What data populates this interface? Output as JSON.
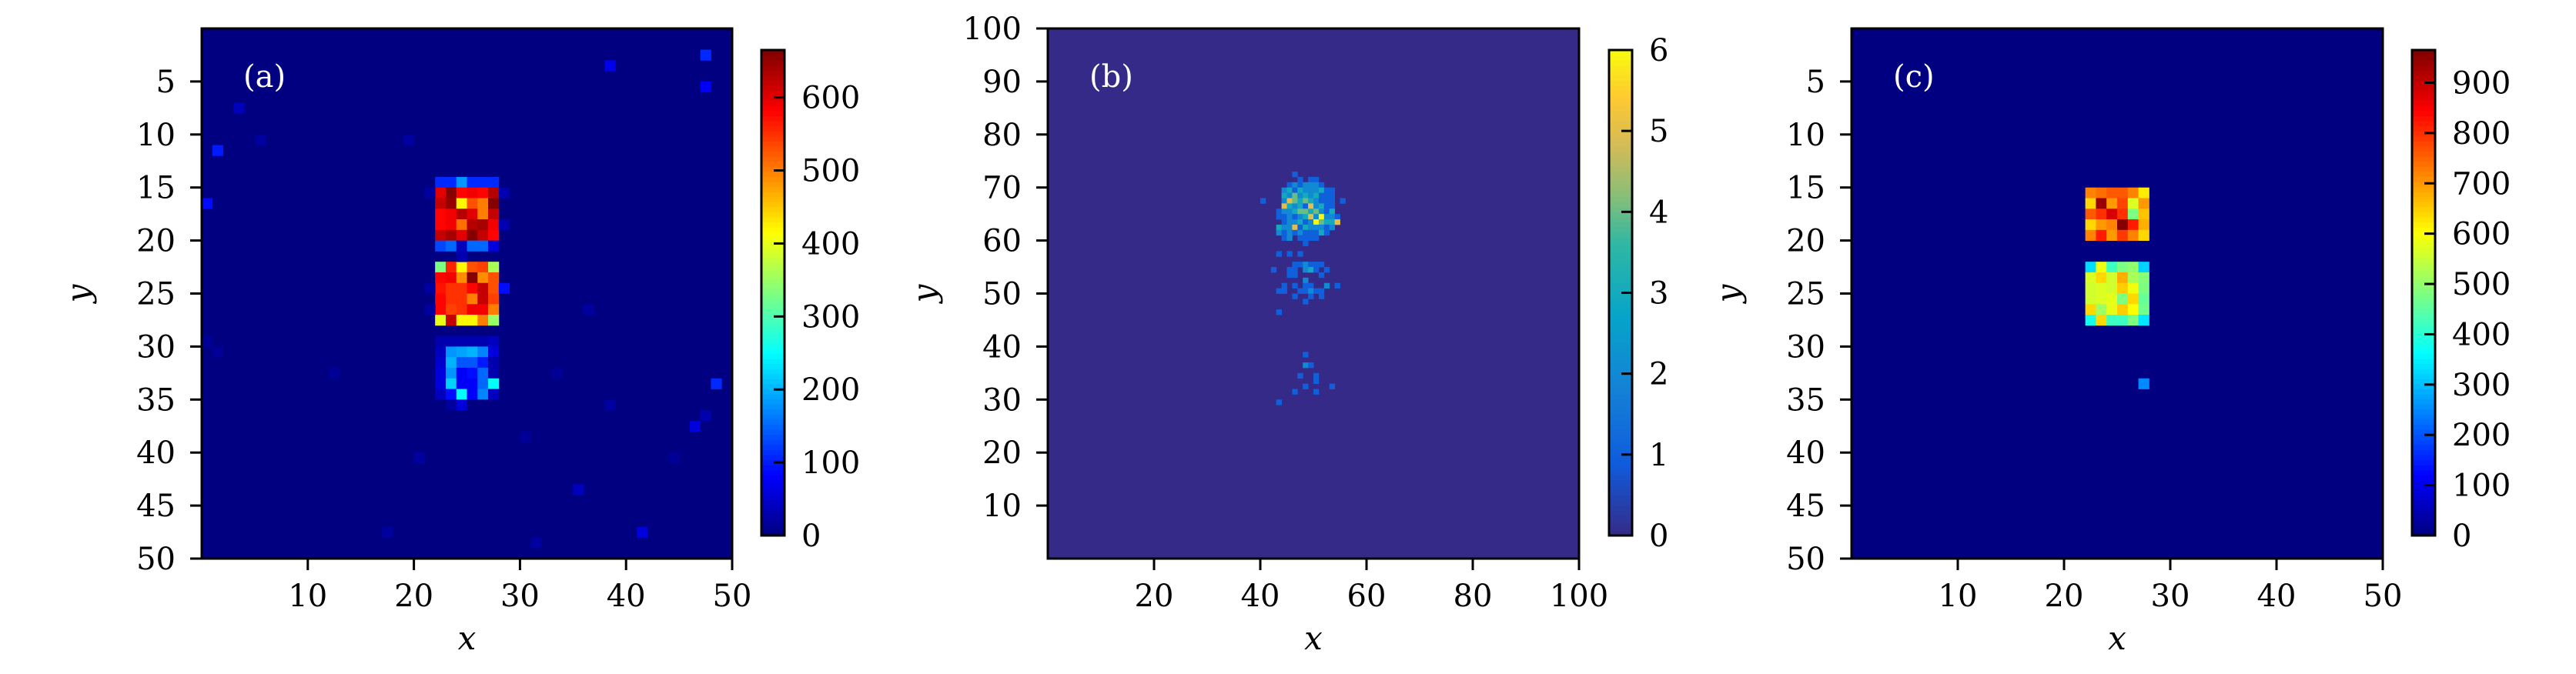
{
  "chart_data": [
    {
      "type": "heatmap",
      "panel_label": "(a)",
      "colormap": "jet",
      "xlabel": "x",
      "ylabel": "y",
      "xlim": [
        0,
        50
      ],
      "ylim": [
        50,
        0
      ],
      "y_axis_direction": "top-to-bottom",
      "xticks": [
        "10",
        "20",
        "30",
        "40",
        "50"
      ],
      "yticks": [
        "5",
        "10",
        "15",
        "20",
        "25",
        "30",
        "35",
        "40",
        "45",
        "50"
      ],
      "colorbar": {
        "min": 0,
        "max": 665,
        "ticks": [
          "0",
          "100",
          "200",
          "300",
          "400",
          "500",
          "600"
        ]
      },
      "background_value": 0,
      "blocks": [
        {
          "x0": 23,
          "y0": 15,
          "rows": [
            [
              110,
              110,
              180,
              110,
              110,
              110
            ],
            [
              600,
              660,
              580,
              590,
              580,
              630
            ],
            [
              620,
              650,
              420,
              530,
              500,
              660
            ],
            [
              580,
              590,
              630,
              600,
              500,
              620
            ],
            [
              580,
              590,
              510,
              630,
              640,
              590
            ],
            [
              620,
              640,
              600,
              660,
              620,
              580
            ],
            [
              130,
              150,
              40,
              150,
              150,
              60
            ]
          ]
        },
        {
          "x0": 23,
          "y0": 23,
          "rows": [
            [
              330,
              560,
              420,
              530,
              540,
              360
            ],
            [
              580,
              590,
              490,
              660,
              490,
              530
            ],
            [
              570,
              550,
              550,
              580,
              620,
              530
            ],
            [
              580,
              550,
              550,
              500,
              620,
              540
            ],
            [
              580,
              540,
              550,
              590,
              590,
              500
            ],
            [
              400,
              620,
              420,
              420,
              500,
              350
            ]
          ]
        },
        {
          "x0": 23,
          "y0": 30,
          "rows": [
            [
              30,
              30,
              30,
              30,
              30,
              40
            ],
            [
              40,
              180,
              190,
              200,
              170,
              60
            ],
            [
              50,
              200,
              140,
              140,
              100,
              30
            ],
            [
              60,
              180,
              80,
              90,
              150,
              30
            ],
            [
              60,
              220,
              80,
              80,
              150,
              250
            ],
            [
              40,
              90,
              250,
              80,
              170,
              40
            ],
            [
              0,
              20,
              60,
              0,
              0,
              0
            ]
          ]
        }
      ],
      "points": [
        [
          48,
          3,
          110
        ],
        [
          39,
          4,
          70
        ],
        [
          48,
          6,
          80
        ],
        [
          4,
          8,
          40
        ],
        [
          6,
          11,
          20
        ],
        [
          2,
          12,
          100
        ],
        [
          20,
          11,
          20
        ],
        [
          1,
          17,
          90
        ],
        [
          22,
          16,
          20
        ],
        [
          29,
          16,
          30
        ],
        [
          29,
          19,
          30
        ],
        [
          25,
          22,
          30
        ],
        [
          22,
          25,
          20
        ],
        [
          29,
          25,
          90
        ],
        [
          22,
          27,
          20
        ],
        [
          37,
          27,
          20
        ],
        [
          1,
          30,
          15
        ],
        [
          2,
          31,
          15
        ],
        [
          13,
          33,
          15
        ],
        [
          34,
          33,
          15
        ],
        [
          49,
          34,
          110
        ],
        [
          39,
          36,
          20
        ],
        [
          48,
          37,
          30
        ],
        [
          47,
          38,
          60
        ],
        [
          31,
          39,
          15
        ],
        [
          21,
          41,
          20
        ],
        [
          45,
          41,
          15
        ],
        [
          36,
          44,
          40
        ],
        [
          18,
          48,
          20
        ],
        [
          42,
          48,
          60
        ],
        [
          32,
          49,
          20
        ]
      ]
    },
    {
      "type": "heatmap",
      "panel_label": "(b)",
      "colormap": "parula",
      "xlabel": "x",
      "ylabel": "y",
      "xlim": [
        0,
        100
      ],
      "ylim": [
        0,
        100
      ],
      "y_axis_direction": "bottom-to-top",
      "xticks": [
        "20",
        "40",
        "60",
        "80",
        "100"
      ],
      "yticks": [
        "10",
        "20",
        "30",
        "40",
        "50",
        "60",
        "70",
        "80",
        "90",
        "100"
      ],
      "colorbar": {
        "min": 0,
        "max": 6,
        "ticks": [
          "0",
          "1",
          "2",
          "3",
          "4",
          "5",
          "6"
        ]
      },
      "background_value": 0,
      "points": [
        [
          47,
          73,
          1
        ],
        [
          48,
          72,
          1
        ],
        [
          50,
          72,
          1
        ],
        [
          51,
          72,
          1
        ],
        [
          46,
          71,
          1
        ],
        [
          47,
          71,
          2
        ],
        [
          48,
          71,
          1
        ],
        [
          49,
          71,
          2
        ],
        [
          50,
          71,
          2
        ],
        [
          51,
          71,
          2
        ],
        [
          52,
          71,
          1
        ],
        [
          45,
          70,
          2
        ],
        [
          46,
          70,
          3
        ],
        [
          47,
          70,
          1
        ],
        [
          48,
          70,
          3
        ],
        [
          49,
          70,
          2
        ],
        [
          50,
          70,
          2
        ],
        [
          51,
          70,
          2
        ],
        [
          52,
          70,
          3
        ],
        [
          53,
          70,
          1
        ],
        [
          54,
          70,
          1
        ],
        [
          45,
          69,
          3
        ],
        [
          46,
          69,
          2
        ],
        [
          47,
          69,
          4
        ],
        [
          48,
          69,
          2
        ],
        [
          49,
          69,
          3
        ],
        [
          50,
          69,
          2
        ],
        [
          51,
          69,
          3
        ],
        [
          52,
          69,
          1
        ],
        [
          53,
          69,
          1
        ],
        [
          54,
          69,
          1
        ],
        [
          41,
          68,
          1
        ],
        [
          45,
          68,
          2
        ],
        [
          46,
          68,
          5
        ],
        [
          47,
          68,
          4
        ],
        [
          48,
          68,
          3
        ],
        [
          49,
          68,
          4
        ],
        [
          50,
          68,
          3
        ],
        [
          51,
          68,
          2
        ],
        [
          52,
          68,
          1
        ],
        [
          53,
          68,
          1
        ],
        [
          54,
          68,
          1
        ],
        [
          56,
          68,
          1
        ],
        [
          45,
          67,
          5
        ],
        [
          46,
          67,
          3
        ],
        [
          47,
          67,
          2
        ],
        [
          48,
          67,
          3
        ],
        [
          49,
          67,
          1
        ],
        [
          50,
          67,
          5
        ],
        [
          51,
          67,
          2
        ],
        [
          52,
          67,
          3
        ],
        [
          53,
          67,
          1
        ],
        [
          54,
          67,
          1
        ],
        [
          44,
          66,
          1
        ],
        [
          45,
          66,
          2
        ],
        [
          46,
          66,
          2
        ],
        [
          47,
          66,
          3
        ],
        [
          48,
          66,
          4
        ],
        [
          49,
          66,
          4
        ],
        [
          50,
          66,
          3
        ],
        [
          51,
          66,
          4
        ],
        [
          52,
          66,
          2
        ],
        [
          53,
          66,
          1
        ],
        [
          54,
          66,
          3
        ],
        [
          44,
          65,
          1
        ],
        [
          45,
          65,
          1
        ],
        [
          46,
          65,
          2
        ],
        [
          47,
          65,
          1
        ],
        [
          48,
          65,
          2
        ],
        [
          49,
          65,
          3
        ],
        [
          50,
          65,
          5
        ],
        [
          51,
          65,
          2
        ],
        [
          52,
          65,
          6
        ],
        [
          53,
          65,
          2
        ],
        [
          54,
          65,
          2
        ],
        [
          55,
          65,
          1
        ],
        [
          45,
          64,
          1
        ],
        [
          46,
          64,
          2
        ],
        [
          47,
          64,
          2
        ],
        [
          48,
          64,
          3
        ],
        [
          49,
          64,
          1
        ],
        [
          50,
          64,
          2
        ],
        [
          51,
          64,
          6
        ],
        [
          52,
          64,
          4
        ],
        [
          53,
          64,
          3
        ],
        [
          54,
          64,
          3
        ],
        [
          55,
          64,
          5
        ],
        [
          44,
          63,
          3
        ],
        [
          45,
          63,
          2
        ],
        [
          46,
          63,
          2
        ],
        [
          47,
          63,
          5
        ],
        [
          48,
          63,
          1
        ],
        [
          49,
          63,
          3
        ],
        [
          50,
          63,
          2
        ],
        [
          51,
          63,
          2
        ],
        [
          52,
          63,
          2
        ],
        [
          53,
          63,
          1
        ],
        [
          54,
          63,
          2
        ],
        [
          44,
          62,
          2
        ],
        [
          45,
          62,
          1
        ],
        [
          46,
          62,
          2
        ],
        [
          47,
          62,
          1
        ],
        [
          48,
          62,
          2
        ],
        [
          49,
          62,
          1
        ],
        [
          50,
          62,
          1
        ],
        [
          51,
          62,
          1
        ],
        [
          52,
          62,
          3
        ],
        [
          53,
          62,
          1
        ],
        [
          45,
          61,
          1
        ],
        [
          46,
          61,
          2
        ],
        [
          48,
          61,
          1
        ],
        [
          49,
          61,
          1
        ],
        [
          50,
          61,
          1
        ],
        [
          51,
          61,
          1
        ],
        [
          49,
          60,
          1
        ],
        [
          44,
          58,
          1
        ],
        [
          46,
          58,
          1
        ],
        [
          48,
          58,
          1
        ],
        [
          47,
          56,
          1
        ],
        [
          48,
          56,
          1
        ],
        [
          49,
          56,
          2
        ],
        [
          50,
          56,
          1
        ],
        [
          51,
          56,
          1
        ],
        [
          52,
          56,
          1
        ],
        [
          43,
          55,
          1
        ],
        [
          46,
          55,
          1
        ],
        [
          47,
          55,
          1
        ],
        [
          49,
          55,
          2
        ],
        [
          50,
          55,
          3
        ],
        [
          51,
          55,
          1
        ],
        [
          53,
          55,
          1
        ],
        [
          46,
          54,
          1
        ],
        [
          47,
          54,
          1
        ],
        [
          52,
          54,
          1
        ],
        [
          49,
          53,
          2
        ],
        [
          45,
          52,
          1
        ],
        [
          47,
          52,
          1
        ],
        [
          49,
          52,
          1
        ],
        [
          50,
          52,
          1
        ],
        [
          53,
          52,
          2
        ],
        [
          55,
          52,
          1
        ],
        [
          44,
          51,
          1
        ],
        [
          45,
          51,
          1
        ],
        [
          48,
          51,
          1
        ],
        [
          49,
          51,
          1
        ],
        [
          50,
          51,
          2
        ],
        [
          51,
          51,
          1
        ],
        [
          52,
          51,
          1
        ],
        [
          47,
          50,
          1
        ],
        [
          50,
          50,
          1
        ],
        [
          52,
          50,
          1
        ],
        [
          49,
          49,
          1
        ],
        [
          44,
          47,
          1
        ],
        [
          49,
          39,
          1
        ],
        [
          49,
          37,
          2
        ],
        [
          50,
          37,
          1
        ],
        [
          48,
          35,
          1
        ],
        [
          51,
          35,
          1
        ],
        [
          51,
          34,
          1
        ],
        [
          49,
          33,
          1
        ],
        [
          54,
          33,
          1
        ],
        [
          47,
          32,
          1
        ],
        [
          51,
          32,
          1
        ],
        [
          44,
          30,
          1
        ]
      ]
    },
    {
      "type": "heatmap",
      "panel_label": "(c)",
      "colormap": "jet",
      "xlabel": "x",
      "ylabel": "y",
      "xlim": [
        0,
        50
      ],
      "ylim": [
        50,
        0
      ],
      "y_axis_direction": "top-to-bottom",
      "xticks": [
        "10",
        "20",
        "30",
        "40",
        "50"
      ],
      "yticks": [
        "5",
        "10",
        "15",
        "20",
        "25",
        "30",
        "35",
        "40",
        "45",
        "50"
      ],
      "colorbar": {
        "min": 0,
        "max": 965,
        "ticks": [
          "0",
          "100",
          "200",
          "300",
          "400",
          "500",
          "600",
          "700",
          "800",
          "900"
        ]
      },
      "background_value": 0,
      "blocks": [
        {
          "x0": 23,
          "y0": 16,
          "rows": [
            [
              720,
              740,
              760,
              760,
              720,
              620
            ],
            [
              640,
              940,
              700,
              780,
              570,
              700
            ],
            [
              760,
              800,
              880,
              800,
              480,
              660
            ],
            [
              640,
              700,
              720,
              960,
              820,
              680
            ],
            [
              720,
              820,
              700,
              790,
              720,
              640
            ]
          ]
        },
        {
          "x0": 23,
          "y0": 23,
          "rows": [
            [
              330,
              590,
              420,
              480,
              500,
              320
            ],
            [
              570,
              640,
              560,
              680,
              520,
              490
            ],
            [
              560,
              570,
              560,
              650,
              590,
              480
            ],
            [
              560,
              570,
              580,
              480,
              640,
              460
            ],
            [
              640,
              510,
              580,
              650,
              600,
              470
            ],
            [
              380,
              640,
              420,
              420,
              480,
              340
            ]
          ]
        }
      ],
      "points": [
        [
          28,
          34,
          250
        ]
      ]
    }
  ]
}
